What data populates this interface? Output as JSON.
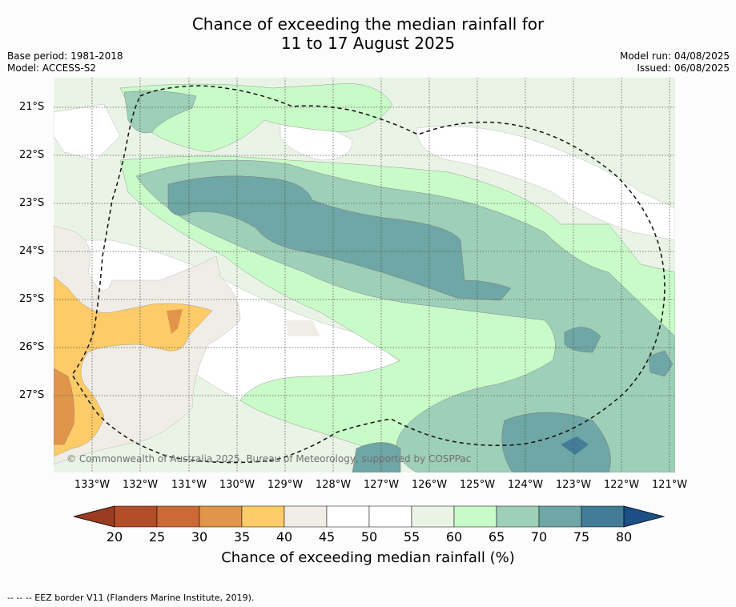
{
  "title": {
    "line1": "Chance of exceeding the median rainfall for",
    "line2": "11 to 17 August 2025"
  },
  "meta_left": {
    "base_period": "Base period: 1981-2018",
    "model": "Model: ACCESS-S2"
  },
  "meta_right": {
    "model_run": "Model run: 04/08/2025",
    "issued": "Issued: 06/08/2025"
  },
  "map": {
    "lat_labels": [
      "21°S",
      "22°S",
      "23°S",
      "24°S",
      "25°S",
      "26°S",
      "27°S"
    ],
    "lon_labels": [
      "133°W",
      "132°W",
      "131°W",
      "130°W",
      "129°W",
      "128°W",
      "127°W",
      "126°W",
      "125°W",
      "124°W",
      "123°W",
      "122°W",
      "121°W"
    ],
    "copyright": "© Commonwealth of Australia 2025, Bureau of Meteorology, supported by COSPPac"
  },
  "colorbar": {
    "ticks": [
      "20",
      "25",
      "30",
      "35",
      "40",
      "45",
      "50",
      "55",
      "60",
      "65",
      "70",
      "75",
      "80"
    ],
    "colors": [
      "#9c3a22",
      "#b24e2a",
      "#cc6a35",
      "#e0954a",
      "#fdcb67",
      "#f0ede6",
      "#ffffff",
      "#ffffff",
      "#e9f4e6",
      "#c9fbc8",
      "#9ecfb8",
      "#6fa6a6",
      "#437c96",
      "#1b4f85"
    ],
    "label": "Chance of exceeding median rainfall (%)"
  },
  "footnote": "-- -- -- EEZ border V11 (Flanders Marine Institute, 2019)."
}
